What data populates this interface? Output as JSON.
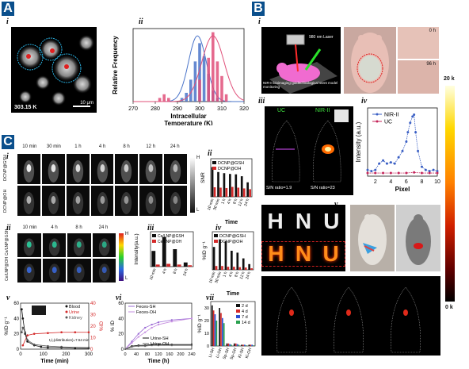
{
  "panels": {
    "A": {
      "letter": "A",
      "i": {
        "label": "i",
        "temp_label": "303.15 K",
        "scale_bar": "10 μm"
      },
      "ii": {
        "label": "ii",
        "chart_data": {
          "type": "bar",
          "title": "",
          "xlabel": "Intracellular Temperature (K)",
          "ylabel": "Relative Frequency",
          "xticks": [
            "270",
            "280",
            "290",
            "300",
            "310",
            "320"
          ],
          "xlim": [
            270,
            320
          ],
          "series": [
            {
              "values_x": [
                292,
                294,
                296,
                298,
                300,
                302,
                304,
                306,
                308
              ],
              "values": [
                0.05,
                0.12,
                0.3,
                0.55,
                0.8,
                0.62,
                0.38,
                0.15,
                0.05
              ],
              "color": "#4a74c9"
            },
            {
              "values_x": [
                282,
                284,
                286,
                300,
                304,
                306,
                308,
                310,
                312
              ],
              "values": [
                0.05,
                0.1,
                0.05,
                0.3,
                0.6,
                0.95,
                0.55,
                0.35,
                0.1
              ],
              "color": "#e0507a"
            }
          ]
        }
      }
    },
    "B": {
      "letter": "B",
      "i": {
        "label": "i",
        "laser": "980 nm Laser",
        "caption": "NIR-II bioimaging-guided biological stent model monitoring"
      },
      "ii": {
        "label": "ii",
        "t0": "0 h",
        "t1": "96 h"
      },
      "iii": {
        "label": "iii",
        "uc": "UC",
        "nir": "NIR-II",
        "sn1": "S/N ratio=1.9",
        "sn2": "S/N ratio=23"
      },
      "iv": {
        "label": "iv",
        "chart_data": {
          "type": "line",
          "xlabel": "Pixel",
          "ylabel": "Intensity (a.u.)",
          "xticks": [
            "2",
            "4",
            "6",
            "8",
            "10"
          ],
          "xlim": [
            1,
            10
          ],
          "series": [
            {
              "name": "NIR-II",
              "color": "#3a5fc4",
              "x": [
                1,
                1.5,
                2,
                2.5,
                3,
                3.5,
                4,
                4.5,
                5,
                5.5,
                6,
                6.2,
                6.5,
                6.8,
                7,
                7.2,
                7.5,
                8,
                8.5,
                9,
                9.5,
                10
              ],
              "values": [
                0.1,
                0.08,
                0.1,
                0.2,
                0.25,
                0.2,
                0.22,
                0.2,
                0.3,
                0.4,
                0.55,
                0.7,
                0.85,
                0.95,
                0.98,
                0.7,
                0.4,
                0.15,
                0.1,
                0.08,
                0.1,
                0.08
              ]
            },
            {
              "name": "UC",
              "color": "#c4245a",
              "x": [
                1,
                2,
                3,
                4,
                5,
                6,
                7,
                8,
                9,
                10
              ],
              "values": [
                0.05,
                0.05,
                0.05,
                0.05,
                0.05,
                0.05,
                0.06,
                0.05,
                0.05,
                0.05
              ]
            }
          ]
        }
      },
      "v": {
        "label": "v",
        "letters": [
          "H",
          "N",
          "U"
        ]
      },
      "vi": {
        "label": "vi"
      },
      "vii": {
        "label": "vii"
      },
      "colorbar": {
        "top": "20 k",
        "bottom": "0 k"
      }
    },
    "C": {
      "letter": "C",
      "i": {
        "label": "i",
        "times": [
          "10 min",
          "30 min",
          "1 h",
          "4 h",
          "8 h",
          "12 h",
          "24 h"
        ],
        "row1": "DCNP@GSH",
        "row2": "DCNP@OH",
        "scale_h": "H",
        "scale_l": "L"
      },
      "ii_chart": {
        "label": "ii",
        "chart_data": {
          "type": "bar",
          "xlabel": "Time",
          "ylabel": "SNR",
          "categories": [
            "10 min",
            "30 min",
            "1 h",
            "4 h",
            "8 h",
            "12 h",
            "24 h"
          ],
          "series": [
            {
              "name": "DCNP@GSH",
              "color": "#111111",
              "values": [
                7.8,
                6.5,
                6.2,
                6.0,
                5.9,
                5.4,
                3.8
              ]
            },
            {
              "name": "DCNP@OH",
              "color": "#d42a2a",
              "values": [
                2.5,
                2.4,
                2.3,
                2.6,
                2.4,
                2.2,
                2.0
              ]
            }
          ],
          "ylim": [
            0,
            10
          ]
        }
      },
      "ii_img": {
        "label": "ii",
        "times": [
          "10 min",
          "4 h",
          "8 h",
          "24 h"
        ],
        "row1": "Ce/LNP@GSH",
        "row2": "Ce/LNP@OH",
        "scale_h": "H",
        "scale_l": "L"
      },
      "iii": {
        "label": "iii",
        "chart_data": {
          "type": "bar",
          "xlabel": "",
          "ylabel": "Intensity(a.u.)",
          "categories": [
            "10 min",
            "4 h",
            "8 h",
            "24 h"
          ],
          "series": [
            {
              "name": "Ce/LNP@GSH",
              "color": "#111111",
              "values": [
                4.5,
                8.5,
                5.0,
                1.2
              ]
            },
            {
              "name": "Ce/LNP@OH",
              "color": "#d42a2a",
              "values": [
                0.6,
                0.8,
                0.6,
                0.4
              ]
            }
          ],
          "ylim": [
            0,
            10
          ]
        }
      },
      "iv": {
        "label": "iv",
        "chart_data": {
          "type": "bar",
          "xlabel": "Time",
          "ylabel": "%ID g⁻¹",
          "categories": [
            "10 min",
            "30 min",
            "1 h",
            "4 h",
            "8 h",
            "12 h",
            "24 h"
          ],
          "series": [
            {
              "name": "DCNP@GSH",
              "color": "#111111",
              "values": [
                6.0,
                8.0,
                7.5,
                5.0,
                4.5,
                3.0,
                1.5
              ]
            },
            {
              "name": "DCNP@OH",
              "color": "#d42a2a",
              "values": [
                1.0,
                1.0,
                0.8,
                0.8,
                0.7,
                0.6,
                0.4
              ]
            }
          ],
          "ylim": [
            0,
            10
          ]
        }
      },
      "v": {
        "label": "v",
        "chart_data": {
          "type": "line",
          "xlabel": "Time (min)",
          "ylabel": "%ID g⁻¹",
          "y2label": "%ID",
          "annotation": "t₁/₂(distribution)=7.54 min",
          "xticks": [
            "0",
            "100",
            "200",
            "300"
          ],
          "yticks": [
            "0",
            "20",
            "40",
            "60"
          ],
          "y2ticks": [
            "0",
            "10",
            "20",
            "30",
            "40"
          ],
          "series": [
            {
              "name": "Blood",
              "color": "#111111",
              "x": [
                5,
                10,
                20,
                30,
                60,
                90,
                120,
                180,
                240,
                300
              ],
              "values": [
                52,
                40,
                20,
                10,
                5,
                3,
                2,
                2,
                1,
                1
              ]
            },
            {
              "name": "Urine",
              "color": "#d42a2a",
              "x": [
                10,
                30,
                60,
                120,
                180,
                240,
                300
              ],
              "values": [
                5,
                18,
                20,
                21,
                22,
                22,
                22
              ]
            },
            {
              "name": "Kidney",
              "color": "#555555",
              "x": [
                5,
                10,
                20,
                30,
                60,
                120,
                180,
                300
              ],
              "values": [
                22,
                28,
                22,
                12,
                6,
                4,
                3,
                2
              ]
            }
          ]
        }
      },
      "vi": {
        "label": "vi",
        "chart_data": {
          "type": "line",
          "xlabel": "Time (h)",
          "ylabel": "% ID",
          "xticks": [
            "0",
            "40",
            "80",
            "120",
            "160",
            "200",
            "240"
          ],
          "yticks": [
            "0",
            "20",
            "40",
            "60"
          ],
          "series": [
            {
              "name": "Feces-SH",
              "color": "#9b6bd4",
              "x": [
                0,
                24,
                48,
                72,
                96,
                120,
                168,
                240
              ],
              "values": [
                0,
                10,
                20,
                28,
                32,
                35,
                38,
                40
              ]
            },
            {
              "name": "Feces-OH",
              "color": "#c68fe0",
              "x": [
                0,
                24,
                48,
                72,
                96,
                120,
                168,
                240
              ],
              "values": [
                0,
                8,
                16,
                22,
                28,
                32,
                36,
                40
              ]
            },
            {
              "name": "Urine-SH",
              "color": "#111111",
              "x": [
                0,
                24,
                48,
                72,
                96,
                120,
                168,
                240
              ],
              "values": [
                0,
                4,
                5,
                5,
                6,
                6,
                6,
                6
              ]
            },
            {
              "name": "Urine-OH",
              "color": "#666666",
              "x": [
                0,
                24,
                48,
                72,
                96,
                120,
                168,
                240
              ],
              "values": [
                0,
                3,
                4,
                4,
                5,
                5,
                5,
                5
              ]
            }
          ]
        }
      },
      "vii": {
        "label": "vii",
        "chart_data": {
          "type": "bar",
          "ylabel": "%ID g⁻¹",
          "categories": [
            "Li-SH",
            "Li-OH",
            "Sp-SH",
            "Sp-OH",
            "Ki-SH",
            "Ki-OH"
          ],
          "yticks": [
            "0",
            "10",
            "20",
            "30"
          ],
          "series": [
            {
              "name": "2 d",
              "color": "#111111",
              "values": [
                32,
                30,
                2,
                2,
                1,
                1
              ]
            },
            {
              "name": "4 d",
              "color": "#d42a2a",
              "values": [
                28,
                26,
                2,
                2,
                1,
                1
              ]
            },
            {
              "name": "7 d",
              "color": "#2a4fd4",
              "values": [
                25,
                22,
                1.5,
                1.5,
                1,
                1
              ]
            },
            {
              "name": "14 d",
              "color": "#2aa14f",
              "values": [
                20,
                18,
                1,
                1,
                0.5,
                0.5
              ]
            }
          ],
          "ylim": [
            0,
            35
          ]
        }
      }
    }
  }
}
